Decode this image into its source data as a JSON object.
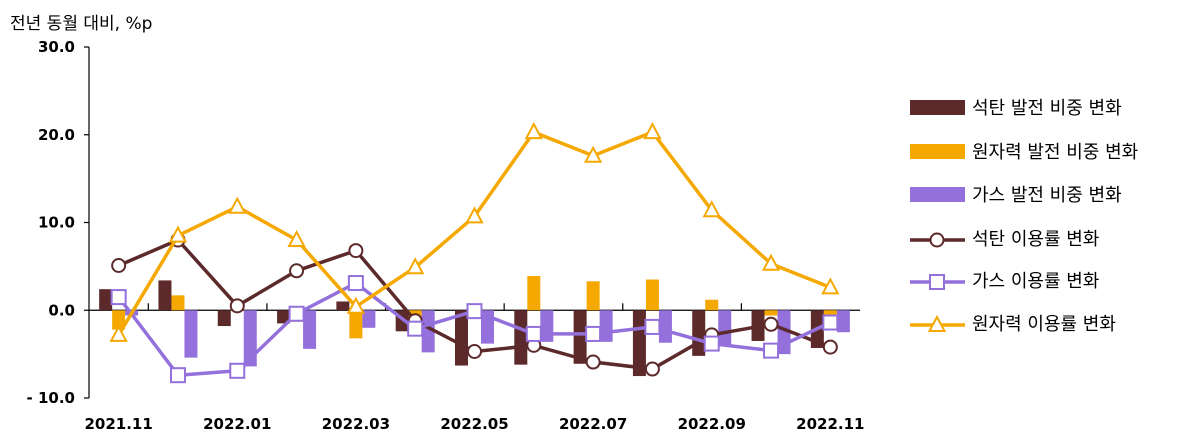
{
  "chart_data": {
    "type": "bar",
    "y_unit_label": "전년 동월 대비, %p",
    "x": [
      "2021.11",
      "2021.12",
      "2022.01",
      "2022.02",
      "2022.03",
      "2022.04",
      "2022.05",
      "2022.06",
      "2022.07",
      "2022.08",
      "2022.09",
      "2022.10",
      "2022.11"
    ],
    "x_tick_labels": [
      "2021.11",
      "2022.01",
      "2022.03",
      "2022.05",
      "2022.07",
      "2022.09",
      "2022.11"
    ],
    "y_ticks": [
      "30.0",
      "20.0",
      "10.0",
      "0.0",
      "- 10.0"
    ],
    "ylim": [
      -10,
      30
    ],
    "grid": false,
    "legend_position": "right",
    "bar_series": [
      {
        "name": "석탄 발전 비중 변화",
        "color": "#5c2a2a",
        "values": [
          2.4,
          3.4,
          -1.8,
          -1.5,
          1.0,
          -2.4,
          -6.3,
          -6.2,
          -6.1,
          -7.5,
          -5.2,
          -3.5,
          -4.3
        ]
      },
      {
        "name": "원자력 발전 비중 변화",
        "color": "#f5a800",
        "values": [
          -2.2,
          1.7,
          0.0,
          -1.3,
          -3.2,
          -1.0,
          0.0,
          3.9,
          3.3,
          3.5,
          1.2,
          -0.6,
          -0.8
        ]
      },
      {
        "name": "가스 발전 비중 변화",
        "color": "#9370db",
        "values": [
          -0.6,
          -5.4,
          -6.4,
          -4.4,
          -2.0,
          -4.8,
          -3.8,
          -3.6,
          -3.6,
          -3.7,
          -4.0,
          -5.0,
          -2.5
        ]
      }
    ],
    "line_series": [
      {
        "name": "석탄 이용률 변화",
        "color": "#5c2a2a",
        "marker": "circle",
        "values": [
          5.1,
          8.0,
          0.5,
          4.5,
          6.8,
          -1.2,
          -4.7,
          -4.0,
          -5.9,
          -6.7,
          -2.8,
          -1.6,
          -4.2
        ]
      },
      {
        "name": "가스 이용률 변화",
        "color": "#9370db",
        "marker": "square",
        "values": [
          1.5,
          -7.4,
          -6.9,
          -0.4,
          3.1,
          -2.1,
          -0.1,
          -2.7,
          -2.7,
          -1.9,
          -3.8,
          -4.6,
          -1.4
        ]
      },
      {
        "name": "원자력 이용률 변화",
        "color": "#f5a800",
        "marker": "triangle",
        "values": [
          -2.8,
          8.5,
          11.8,
          8.0,
          0.4,
          4.9,
          10.7,
          20.3,
          17.6,
          20.3,
          11.4,
          5.3,
          2.6
        ]
      }
    ]
  }
}
